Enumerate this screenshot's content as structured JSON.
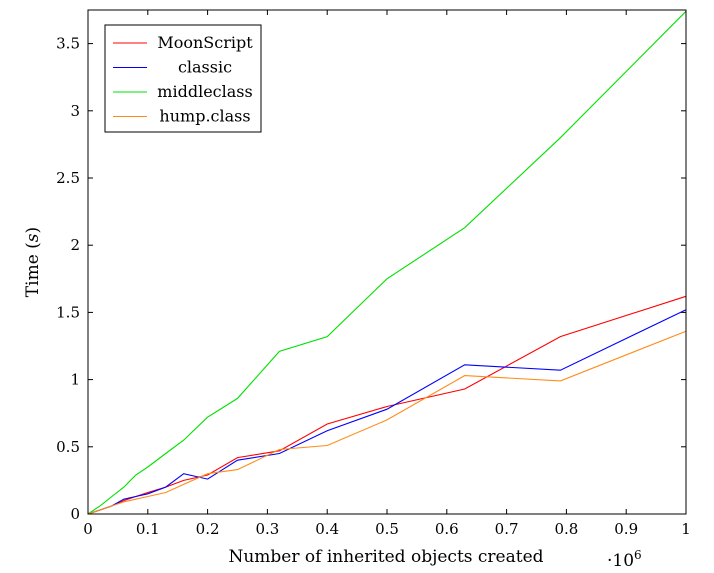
{
  "chart_data": {
    "type": "line",
    "title": "",
    "xlabel": "Number of inherited objects created",
    "ylabel": "Time (s)",
    "ylabel_parts": {
      "prefix": "Time (",
      "unit": "s",
      "suffix": ")"
    },
    "x_scale_note_base": "·10",
    "x_scale_note_exp": "6",
    "xlim": [
      0,
      1
    ],
    "ylim": [
      0,
      3.75
    ],
    "xticks": [
      0,
      0.1,
      0.2,
      0.3,
      0.4,
      0.5,
      0.6,
      0.7,
      0.8,
      0.9,
      1
    ],
    "xtick_labels": [
      "0",
      "0.1",
      "0.2",
      "0.3",
      "0.4",
      "0.5",
      "0.6",
      "0.7",
      "0.8",
      "0.9",
      "1"
    ],
    "yticks": [
      0,
      0.5,
      1,
      1.5,
      2,
      2.5,
      3,
      3.5
    ],
    "ytick_labels": [
      "0",
      "0.5",
      "1",
      "1.5",
      "2",
      "2.5",
      "3",
      "3.5"
    ],
    "grid": false,
    "legend_position": "top-left",
    "series": [
      {
        "name": "MoonScript",
        "color": "#ff0000",
        "points": [
          [
            0,
            0
          ],
          [
            0.02,
            0.03
          ],
          [
            0.04,
            0.06
          ],
          [
            0.06,
            0.1
          ],
          [
            0.08,
            0.13
          ],
          [
            0.1,
            0.16
          ],
          [
            0.13,
            0.2
          ],
          [
            0.16,
            0.25
          ],
          [
            0.2,
            0.29
          ],
          [
            0.25,
            0.42
          ],
          [
            0.32,
            0.47
          ],
          [
            0.4,
            0.67
          ],
          [
            0.5,
            0.8
          ],
          [
            0.63,
            0.93
          ],
          [
            0.79,
            1.32
          ],
          [
            1,
            1.62
          ]
        ]
      },
      {
        "name": "classic",
        "color": "#0000ff",
        "points": [
          [
            0,
            0
          ],
          [
            0.02,
            0.03
          ],
          [
            0.04,
            0.06
          ],
          [
            0.06,
            0.11
          ],
          [
            0.08,
            0.13
          ],
          [
            0.1,
            0.15
          ],
          [
            0.13,
            0.2
          ],
          [
            0.16,
            0.3
          ],
          [
            0.2,
            0.26
          ],
          [
            0.25,
            0.4
          ],
          [
            0.32,
            0.45
          ],
          [
            0.4,
            0.62
          ],
          [
            0.5,
            0.78
          ],
          [
            0.63,
            1.11
          ],
          [
            0.79,
            1.07
          ],
          [
            1,
            1.52
          ]
        ]
      },
      {
        "name": "middleclass",
        "color": "#00e000",
        "points": [
          [
            0,
            0
          ],
          [
            0.02,
            0.06
          ],
          [
            0.04,
            0.13
          ],
          [
            0.06,
            0.2
          ],
          [
            0.08,
            0.29
          ],
          [
            0.1,
            0.35
          ],
          [
            0.13,
            0.45
          ],
          [
            0.16,
            0.55
          ],
          [
            0.2,
            0.72
          ],
          [
            0.25,
            0.86
          ],
          [
            0.32,
            1.21
          ],
          [
            0.4,
            1.32
          ],
          [
            0.5,
            1.75
          ],
          [
            0.63,
            2.13
          ],
          [
            0.79,
            2.8
          ],
          [
            1,
            3.74
          ]
        ]
      },
      {
        "name": "hump.class",
        "color": "#ff8c1a",
        "points": [
          [
            0,
            0
          ],
          [
            0.02,
            0.03
          ],
          [
            0.04,
            0.06
          ],
          [
            0.06,
            0.09
          ],
          [
            0.08,
            0.11
          ],
          [
            0.1,
            0.13
          ],
          [
            0.13,
            0.16
          ],
          [
            0.16,
            0.22
          ],
          [
            0.2,
            0.3
          ],
          [
            0.25,
            0.33
          ],
          [
            0.32,
            0.48
          ],
          [
            0.4,
            0.51
          ],
          [
            0.5,
            0.7
          ],
          [
            0.63,
            1.03
          ],
          [
            0.79,
            0.99
          ],
          [
            1,
            1.36
          ]
        ]
      }
    ]
  }
}
